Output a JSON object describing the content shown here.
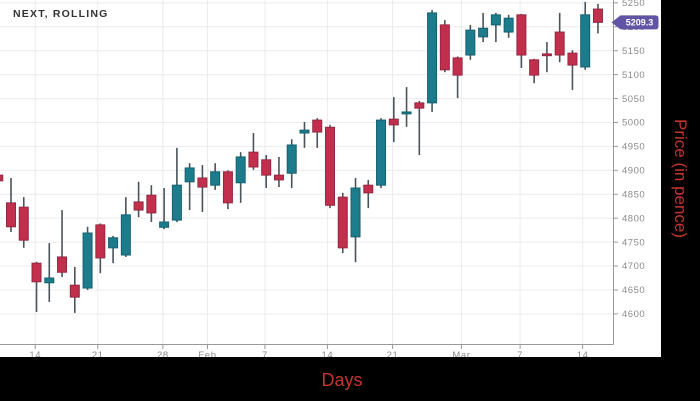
{
  "window": {
    "background": "#000000",
    "panel": "#ffffff"
  },
  "chart": {
    "title": "NEXT, ROLLING",
    "xlabel": "Days",
    "ylabel": "Price (in pence)",
    "last_price_label": "5209.3",
    "colors": {
      "up_fill": "#1d7c8c",
      "up_stroke": "#14606f",
      "down_fill": "#c22f4d",
      "down_stroke": "#952742",
      "wick": "#4a545c",
      "grid": "#ececec",
      "axis_line": "#999999",
      "tick_text": "#8a8a8a",
      "title_text": "#333333",
      "axis_title_text": "#c4352f",
      "tag_fill": "#6254a5",
      "tag_text": "#ffffff"
    }
  },
  "chart_data": {
    "type": "candlestick",
    "title": "NEXT, ROLLING",
    "xlabel": "Days",
    "ylabel": "Price (in pence)",
    "ylim": [
      4536,
      5256
    ],
    "grid": true,
    "y_ticks": [
      4600,
      4650,
      4700,
      4750,
      4800,
      4850,
      4900,
      4950,
      5000,
      5050,
      5100,
      5150,
      5200,
      5250
    ],
    "x_ticks": [
      {
        "label": "14",
        "day": 2.9
      },
      {
        "label": "21",
        "day": 7.8
      },
      {
        "label": "28",
        "day": 12.9
      },
      {
        "label": "Feb",
        "day": 16.4
      },
      {
        "label": "7",
        "day": 20.9
      },
      {
        "label": "14",
        "day": 25.8
      },
      {
        "label": "21",
        "day": 30.9
      },
      {
        "label": "Mar",
        "day": 36.3
      },
      {
        "label": "7",
        "day": 40.9
      },
      {
        "label": "14",
        "day": 45.8
      }
    ],
    "last_price": 5209.3,
    "candle_order": [
      "day",
      "open",
      "high",
      "low",
      "close"
    ],
    "candles": [
      [
        0,
        4890,
        4895,
        4868,
        4878
      ],
      [
        1,
        4832,
        4884,
        4771,
        4782
      ],
      [
        2,
        4823,
        4844,
        4738,
        4754
      ],
      [
        3,
        4706,
        4709,
        4604,
        4667
      ],
      [
        4,
        4665,
        4748,
        4625,
        4675
      ],
      [
        5,
        4719,
        4817,
        4677,
        4687
      ],
      [
        6,
        4660,
        4698,
        4602,
        4635
      ],
      [
        7,
        4654,
        4782,
        4650,
        4769
      ],
      [
        8,
        4786,
        4789,
        4685,
        4717
      ],
      [
        9,
        4738,
        4763,
        4706,
        4759
      ],
      [
        10,
        4723,
        4844,
        4719,
        4807
      ],
      [
        11,
        4834,
        4876,
        4802,
        4817
      ],
      [
        12,
        4848,
        4869,
        4792,
        4811
      ],
      [
        13,
        4781,
        4863,
        4777,
        4792
      ],
      [
        14,
        4796,
        4947,
        4792,
        4869
      ],
      [
        15,
        4876,
        4915,
        4817,
        4905
      ],
      [
        16,
        4884,
        4911,
        4813,
        4865
      ],
      [
        17,
        4869,
        4915,
        4859,
        4897
      ],
      [
        18,
        4897,
        4900,
        4819,
        4832
      ],
      [
        19,
        4874,
        4938,
        4832,
        4928
      ],
      [
        20,
        4938,
        4978,
        4901,
        4907
      ],
      [
        21,
        4922,
        4932,
        4863,
        4890
      ],
      [
        22,
        4890,
        4928,
        4865,
        4880
      ],
      [
        23,
        4894,
        4965,
        4863,
        4953
      ],
      [
        24,
        4978,
        5001,
        4947,
        4984
      ],
      [
        25,
        5005,
        5009,
        4947,
        4980
      ],
      [
        26,
        4990,
        4995,
        4821,
        4827
      ],
      [
        27,
        4844,
        4853,
        4727,
        4738
      ],
      [
        28,
        4761,
        4884,
        4708,
        4863
      ],
      [
        29,
        4869,
        4880,
        4821,
        4853
      ],
      [
        30,
        4869,
        5009,
        4863,
        5005
      ],
      [
        31,
        5007,
        5053,
        4959,
        4995
      ],
      [
        32,
        5018,
        5074,
        4991,
        5022
      ],
      [
        33,
        5041,
        5045,
        4932,
        5030
      ],
      [
        34,
        5041,
        5235,
        5022,
        5229
      ],
      [
        35,
        5204,
        5214,
        5105,
        5110
      ],
      [
        36,
        5135,
        5138,
        5051,
        5099
      ],
      [
        37,
        5141,
        5204,
        5131,
        5193
      ],
      [
        38,
        5179,
        5229,
        5168,
        5197
      ],
      [
        39,
        5204,
        5229,
        5168,
        5225
      ],
      [
        40,
        5189,
        5225,
        5177,
        5218
      ],
      [
        41,
        5225,
        5227,
        5114,
        5141
      ],
      [
        42,
        5131,
        5133,
        5082,
        5099
      ],
      [
        43,
        5143,
        5168,
        5105,
        5140
      ],
      [
        44,
        5189,
        5229,
        5126,
        5141
      ],
      [
        45,
        5145,
        5151,
        5068,
        5120
      ],
      [
        46,
        5116,
        5252,
        5110,
        5225
      ],
      [
        47,
        5237,
        5248,
        5186,
        5209.3
      ]
    ]
  }
}
